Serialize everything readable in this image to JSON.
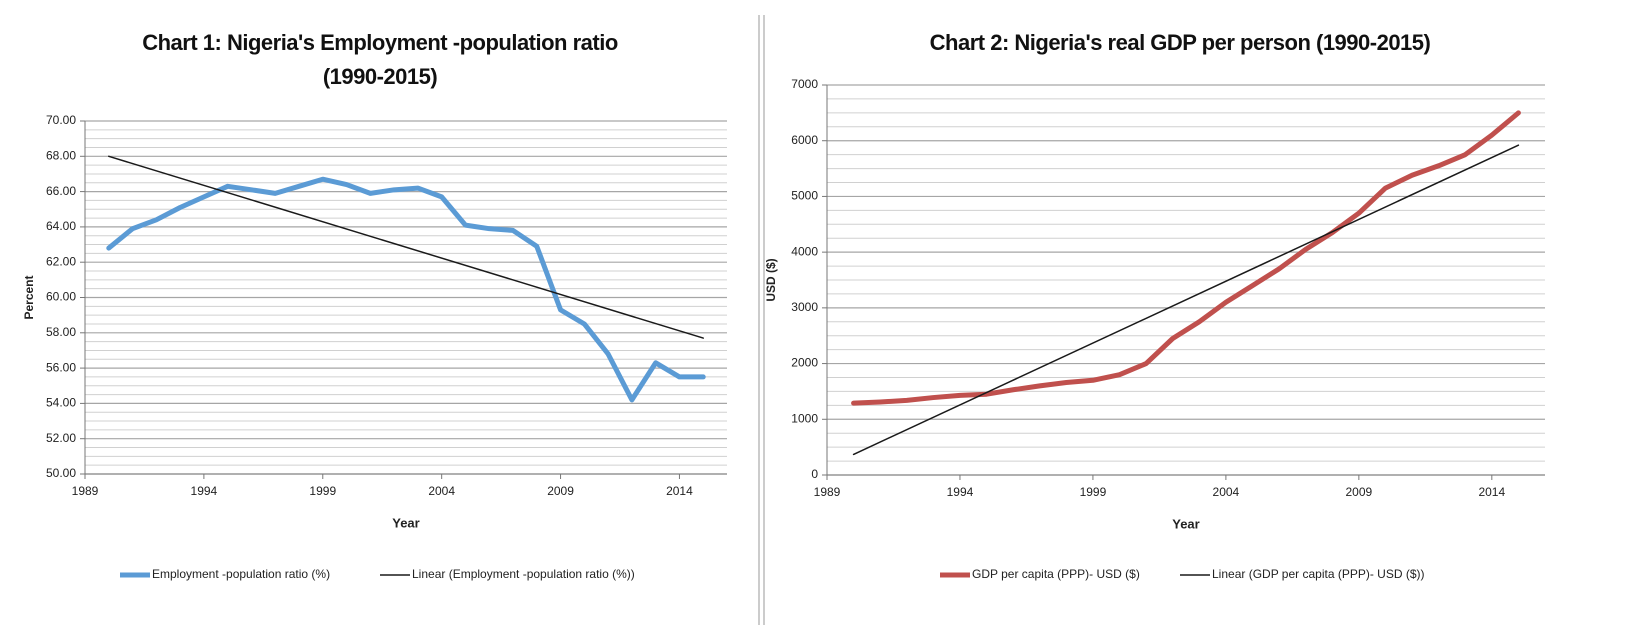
{
  "chart_data": [
    {
      "type": "line",
      "title": "Chart 1: Nigeria's Employment -population ratio (1990-2015)",
      "x_label": "Year",
      "y_label": "Percent",
      "xlim": [
        1989,
        2016
      ],
      "xticks": [
        1989,
        1994,
        1999,
        2004,
        2009,
        2014
      ],
      "ylim": [
        50,
        70
      ],
      "yticks": [
        {
          "value": 50,
          "label": "50.00"
        },
        {
          "value": 52,
          "label": "52.00"
        },
        {
          "value": 54,
          "label": "54.00"
        },
        {
          "value": 56,
          "label": "56.00"
        },
        {
          "value": 58,
          "label": "58.00"
        },
        {
          "value": 60,
          "label": "60.00"
        },
        {
          "value": 62,
          "label": "62.00"
        },
        {
          "value": 64,
          "label": "64.00"
        },
        {
          "value": 66,
          "label": "66.00"
        },
        {
          "value": 68,
          "label": "68.00"
        },
        {
          "value": 70,
          "label": "70.00"
        }
      ],
      "grid": true,
      "minor_grid": true,
      "legend": "bottom",
      "series": [
        {
          "name": "Employment -population ratio (%)",
          "color": "#5b9bd5",
          "x": [
            1990,
            1991,
            1992,
            1993,
            1994,
            1995,
            1996,
            1997,
            1998,
            1999,
            2000,
            2001,
            2002,
            2003,
            2004,
            2005,
            2006,
            2007,
            2008,
            2009,
            2010,
            2011,
            2012,
            2013,
            2014,
            2015
          ],
          "values": [
            62.8,
            63.9,
            64.4,
            65.1,
            65.7,
            66.3,
            66.1,
            65.9,
            66.3,
            66.7,
            66.4,
            65.9,
            66.1,
            66.2,
            65.7,
            64.1,
            63.9,
            63.8,
            62.9,
            59.3,
            58.5,
            56.8,
            54.2,
            56.3,
            55.5,
            55.5
          ]
        },
        {
          "name": "Linear (Employment -population ratio (%))",
          "color": "#1a1a1a",
          "x": [
            1990,
            2015
          ],
          "values": [
            68.0,
            57.7
          ]
        }
      ]
    },
    {
      "type": "line",
      "title": "Chart 2: Nigeria's real GDP per person (1990-2015)",
      "x_label": "Year",
      "y_label": "USD ($)",
      "xlim": [
        1989,
        2016
      ],
      "xticks": [
        1989,
        1994,
        1999,
        2004,
        2009,
        2014
      ],
      "ylim": [
        0,
        7000
      ],
      "yticks": [
        0,
        1000,
        2000,
        3000,
        4000,
        5000,
        6000,
        7000
      ],
      "grid": true,
      "minor_grid": true,
      "legend": "bottom",
      "series": [
        {
          "name": "GDP per capita (PPP)- USD ($)",
          "color": "#c0504d",
          "x": [
            1990,
            1991,
            1992,
            1993,
            1994,
            1995,
            1996,
            1997,
            1998,
            1999,
            2000,
            2001,
            2002,
            2003,
            2004,
            2005,
            2006,
            2007,
            2008,
            2009,
            2010,
            2011,
            2012,
            2013,
            2014,
            2015
          ],
          "values": [
            1290,
            1310,
            1340,
            1390,
            1430,
            1450,
            1530,
            1600,
            1660,
            1700,
            1800,
            2000,
            2450,
            2750,
            3100,
            3400,
            3700,
            4050,
            4350,
            4700,
            5150,
            5380,
            5550,
            5750,
            6100,
            6500
          ]
        },
        {
          "name": "Linear (GDP per capita (PPP)- USD ($))",
          "color": "#1a1a1a",
          "x": [
            1990,
            2015
          ],
          "values": [
            370,
            5920
          ]
        }
      ]
    }
  ]
}
